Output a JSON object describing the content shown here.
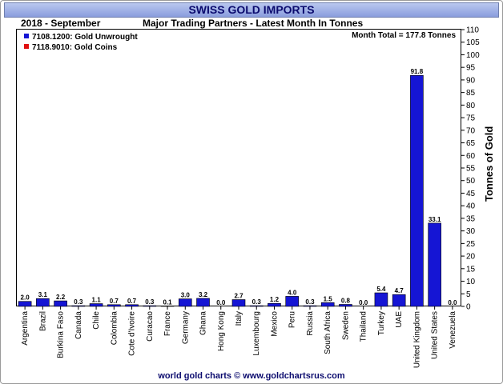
{
  "header": {
    "title": "SWISS GOLD IMPORTS",
    "period": "2018 - September",
    "subtitle": "Major Trading Partners - Latest Month In Tonnes"
  },
  "annotation": "Month Total = 177.8 Tonnes",
  "legend": [
    {
      "label": "7108.1200: Gold Unwrought",
      "color": "#1515d4"
    },
    {
      "label": "7118.9010: Gold Coins",
      "color": "#e01010"
    }
  ],
  "footer": "world gold charts © www.goldchartsrus.com",
  "chart_data": {
    "type": "bar",
    "title": "SWISS GOLD IMPORTS",
    "subtitle": "Major Trading Partners - Latest Month In Tonnes",
    "ylabel": "Tonnes of Gold",
    "ylim": [
      0,
      110
    ],
    "ytick_step": 5,
    "y_axis_side": "right",
    "grid": false,
    "legend_position": "top-left",
    "bar_color": "#1515d4",
    "categories": [
      "Argentina",
      "Brazil",
      "Burkina Faso",
      "Canada",
      "Chile",
      "Colombia",
      "Cote d'Ivoire",
      "Curacao",
      "France",
      "Germany",
      "Ghana",
      "Hong Kong",
      "Italy",
      "Luxembourg",
      "Mexico",
      "Peru",
      "Russia",
      "South Africa",
      "Sweden",
      "Thailand",
      "Turkey",
      "UAE",
      "United Kingdom",
      "United States",
      "Venezuela"
    ],
    "series": [
      {
        "name": "7108.1200: Gold Unwrought",
        "values": [
          2.0,
          3.1,
          2.2,
          0.3,
          1.1,
          0.7,
          0.7,
          0.3,
          0.1,
          3.0,
          3.2,
          0.0,
          2.7,
          0.3,
          1.2,
          4.0,
          0.3,
          1.5,
          0.8,
          0.0,
          5.4,
          4.7,
          91.8,
          33.1,
          0.0
        ],
        "labels": [
          "2.0",
          "3.1",
          "2.2",
          "0.3",
          "1.1",
          "0.7",
          "0.7",
          "0.3",
          "0.1",
          "3.0",
          "3.2",
          "0.0",
          "2.7",
          "0.3",
          "1.2",
          "4.0",
          "0.3",
          "1.5",
          "0.8",
          "0.0",
          "5.4",
          "4.7",
          "91.8",
          "33.1",
          "0.0"
        ]
      }
    ]
  }
}
